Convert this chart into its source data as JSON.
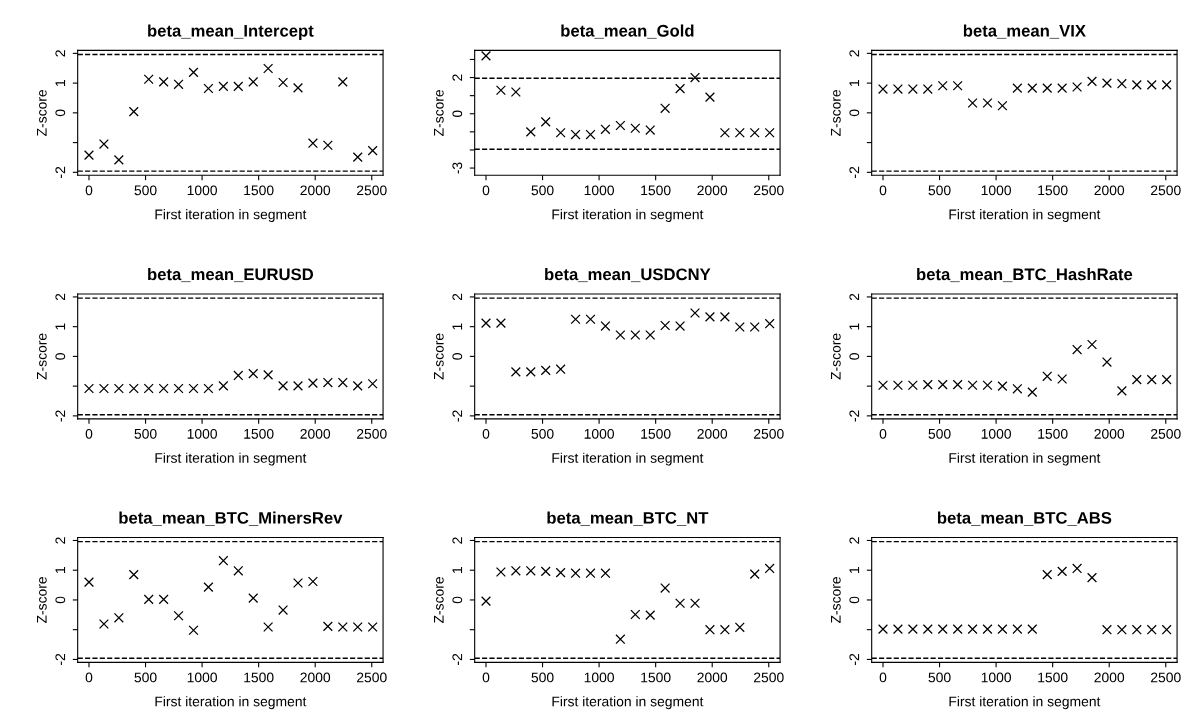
{
  "chart_data": [
    {
      "type": "scatter",
      "title": "beta_mean_Intercept",
      "xlabel": "First iteration in segment",
      "ylabel": "Z-score",
      "marker": "cross",
      "color": "#000000",
      "grid": false,
      "xlim": [
        -100,
        2600
      ],
      "xticks": [
        0,
        500,
        1000,
        1500,
        2000,
        2500
      ],
      "ylim": [
        -2.1,
        2.1
      ],
      "yticks": [
        -2,
        {
          "value": -1,
          "label": null
        },
        0,
        1,
        2
      ],
      "ref_lines": [
        {
          "axis": "y",
          "value": 1.96,
          "line_style": "dashed"
        },
        {
          "axis": "y",
          "value": -1.96,
          "line_style": "dashed"
        }
      ],
      "x": [
        0,
        132,
        264,
        396,
        528,
        660,
        792,
        924,
        1056,
        1188,
        1320,
        1452,
        1584,
        1716,
        1848,
        1980,
        2112,
        2244,
        2376,
        2508
      ],
      "values": [
        -1.42,
        -1.05,
        -1.58,
        0.04,
        1.13,
        1.04,
        0.96,
        1.36,
        0.82,
        0.89,
        0.89,
        1.04,
        1.49,
        1.02,
        0.84,
        -1.02,
        -1.09,
        1.04,
        -1.49,
        -1.27
      ]
    },
    {
      "type": "scatter",
      "title": "beta_mean_Gold",
      "xlabel": "First iteration in segment",
      "ylabel": "Z-score",
      "marker": "cross",
      "color": "#000000",
      "grid": false,
      "xlim": [
        -100,
        2600
      ],
      "xticks": [
        0,
        500,
        1000,
        1500,
        2000,
        2500
      ],
      "ylim": [
        -3.4,
        3.5
      ],
      "yticks": [
        -3,
        {
          "value": -2,
          "label": null
        },
        {
          "value": -1,
          "label": null
        },
        0,
        {
          "value": 1,
          "label": null
        },
        2,
        {
          "value": 3,
          "label": null
        }
      ],
      "ref_lines": [
        {
          "axis": "y",
          "value": 1.96,
          "line_style": "dashed"
        },
        {
          "axis": "y",
          "value": -1.96,
          "line_style": "dashed"
        }
      ],
      "x": [
        0,
        132,
        264,
        396,
        528,
        660,
        792,
        924,
        1056,
        1188,
        1320,
        1452,
        1584,
        1716,
        1848,
        1980,
        2112,
        2244,
        2376,
        2508
      ],
      "values": [
        3.2,
        1.3,
        1.2,
        -1.0,
        -0.45,
        -1.05,
        -1.15,
        -1.15,
        -0.86,
        -0.65,
        -0.8,
        -0.9,
        0.3,
        1.39,
        2.0,
        0.92,
        -1.05,
        -1.05,
        -1.05,
        -1.05
      ]
    },
    {
      "type": "scatter",
      "title": "beta_mean_VIX",
      "xlabel": "First iteration in segment",
      "ylabel": "Z-score",
      "marker": "cross",
      "color": "#000000",
      "grid": false,
      "xlim": [
        -100,
        2600
      ],
      "xticks": [
        0,
        500,
        1000,
        1500,
        2000,
        2500
      ],
      "ylim": [
        -2.1,
        2.1
      ],
      "yticks": [
        -2,
        {
          "value": -1,
          "label": null
        },
        0,
        1,
        2
      ],
      "ref_lines": [
        {
          "axis": "y",
          "value": 1.96,
          "line_style": "dashed"
        },
        {
          "axis": "y",
          "value": -1.96,
          "line_style": "dashed"
        }
      ],
      "x": [
        0,
        132,
        264,
        396,
        528,
        660,
        792,
        924,
        1056,
        1188,
        1320,
        1452,
        1584,
        1716,
        1848,
        1980,
        2112,
        2244,
        2376,
        2508
      ],
      "values": [
        0.8,
        0.8,
        0.8,
        0.8,
        0.91,
        0.91,
        0.33,
        0.33,
        0.24,
        0.83,
        0.83,
        0.83,
        0.83,
        0.87,
        1.06,
        1.0,
        0.98,
        0.94,
        0.94,
        0.94
      ]
    },
    {
      "type": "scatter",
      "title": "beta_mean_EURUSD",
      "xlabel": "First iteration in segment",
      "ylabel": "Z-score",
      "marker": "cross",
      "color": "#000000",
      "grid": false,
      "xlim": [
        -100,
        2600
      ],
      "xticks": [
        0,
        500,
        1000,
        1500,
        2000,
        2500
      ],
      "ylim": [
        -2.1,
        2.1
      ],
      "yticks": [
        -2,
        {
          "value": -1,
          "label": null
        },
        0,
        1,
        2
      ],
      "ref_lines": [
        {
          "axis": "y",
          "value": 1.96,
          "line_style": "dashed"
        },
        {
          "axis": "y",
          "value": -1.96,
          "line_style": "dashed"
        }
      ],
      "x": [
        0,
        132,
        264,
        396,
        528,
        660,
        792,
        924,
        1056,
        1188,
        1320,
        1452,
        1584,
        1716,
        1848,
        1980,
        2112,
        2244,
        2376,
        2508
      ],
      "values": [
        -1.08,
        -1.08,
        -1.08,
        -1.08,
        -1.08,
        -1.08,
        -1.08,
        -1.08,
        -1.08,
        -0.99,
        -0.64,
        -0.58,
        -0.62,
        -0.99,
        -0.99,
        -0.9,
        -0.88,
        -0.88,
        -0.99,
        -0.92
      ]
    },
    {
      "type": "scatter",
      "title": "beta_mean_USDCNY",
      "xlabel": "First iteration in segment",
      "ylabel": "Z-score",
      "marker": "cross",
      "color": "#000000",
      "grid": false,
      "xlim": [
        -100,
        2600
      ],
      "xticks": [
        0,
        500,
        1000,
        1500,
        2000,
        2500
      ],
      "ylim": [
        -2.1,
        2.1
      ],
      "yticks": [
        -2,
        {
          "value": -1,
          "label": null
        },
        0,
        1,
        2
      ],
      "ref_lines": [
        {
          "axis": "y",
          "value": 1.96,
          "line_style": "dashed"
        },
        {
          "axis": "y",
          "value": -1.96,
          "line_style": "dashed"
        }
      ],
      "x": [
        0,
        132,
        264,
        396,
        528,
        660,
        792,
        924,
        1056,
        1188,
        1320,
        1452,
        1584,
        1716,
        1848,
        1980,
        2112,
        2244,
        2376,
        2508
      ],
      "values": [
        1.12,
        1.12,
        -0.52,
        -0.52,
        -0.47,
        -0.43,
        1.25,
        1.25,
        1.02,
        0.72,
        0.72,
        0.72,
        1.04,
        1.02,
        1.46,
        1.33,
        1.33,
        0.99,
        0.99,
        1.1
      ]
    },
    {
      "type": "scatter",
      "title": "beta_mean_BTC_HashRate",
      "xlabel": "First iteration in segment",
      "ylabel": "Z-score",
      "marker": "cross",
      "color": "#000000",
      "grid": false,
      "xlim": [
        -100,
        2600
      ],
      "xticks": [
        0,
        500,
        1000,
        1500,
        2000,
        2500
      ],
      "ylim": [
        -2.1,
        2.1
      ],
      "yticks": [
        -2,
        {
          "value": -1,
          "label": null
        },
        0,
        1,
        2
      ],
      "ref_lines": [
        {
          "axis": "y",
          "value": 1.96,
          "line_style": "dashed"
        },
        {
          "axis": "y",
          "value": -1.96,
          "line_style": "dashed"
        }
      ],
      "x": [
        0,
        132,
        264,
        396,
        528,
        660,
        792,
        924,
        1056,
        1188,
        1320,
        1452,
        1584,
        1716,
        1848,
        1980,
        2112,
        2244,
        2376,
        2508
      ],
      "values": [
        -0.97,
        -0.97,
        -0.97,
        -0.95,
        -0.95,
        -0.95,
        -0.97,
        -0.97,
        -1.0,
        -1.09,
        -1.2,
        -0.67,
        -0.76,
        0.23,
        0.4,
        -0.19,
        -1.16,
        -0.78,
        -0.78,
        -0.78
      ]
    },
    {
      "type": "scatter",
      "title": "beta_mean_BTC_MinersRev",
      "xlabel": "First iteration in segment",
      "ylabel": "Z-score",
      "marker": "cross",
      "color": "#000000",
      "grid": false,
      "xlim": [
        -100,
        2600
      ],
      "xticks": [
        0,
        500,
        1000,
        1500,
        2000,
        2500
      ],
      "ylim": [
        -2.1,
        2.1
      ],
      "yticks": [
        -2,
        {
          "value": -1,
          "label": null
        },
        0,
        1,
        2
      ],
      "ref_lines": [
        {
          "axis": "y",
          "value": 1.96,
          "line_style": "dashed"
        },
        {
          "axis": "y",
          "value": -1.96,
          "line_style": "dashed"
        }
      ],
      "x": [
        0,
        132,
        264,
        396,
        528,
        660,
        792,
        924,
        1056,
        1188,
        1320,
        1452,
        1584,
        1716,
        1848,
        1980,
        2112,
        2244,
        2376,
        2508
      ],
      "values": [
        0.6,
        -0.81,
        -0.6,
        0.85,
        0.02,
        0.02,
        -0.53,
        -1.02,
        0.43,
        1.32,
        0.98,
        0.06,
        -0.91,
        -0.34,
        0.57,
        0.62,
        -0.89,
        -0.91,
        -0.91,
        -0.91
      ]
    },
    {
      "type": "scatter",
      "title": "beta_mean_BTC_NT",
      "xlabel": "First iteration in segment",
      "ylabel": "Z-score",
      "marker": "cross",
      "color": "#000000",
      "grid": false,
      "xlim": [
        -100,
        2600
      ],
      "xticks": [
        0,
        500,
        1000,
        1500,
        2000,
        2500
      ],
      "ylim": [
        -2.1,
        2.1
      ],
      "yticks": [
        -2,
        {
          "value": -1,
          "label": null
        },
        0,
        1,
        2
      ],
      "ref_lines": [
        {
          "axis": "y",
          "value": 1.96,
          "line_style": "dashed"
        },
        {
          "axis": "y",
          "value": -1.96,
          "line_style": "dashed"
        }
      ],
      "x": [
        0,
        132,
        264,
        396,
        528,
        660,
        792,
        924,
        1056,
        1188,
        1320,
        1452,
        1584,
        1716,
        1848,
        1980,
        2112,
        2244,
        2376,
        2508
      ],
      "values": [
        -0.04,
        0.94,
        0.98,
        0.98,
        0.96,
        0.92,
        0.9,
        0.9,
        0.9,
        -1.32,
        -0.49,
        -0.51,
        0.4,
        -0.11,
        -0.11,
        -1.0,
        -1.0,
        -0.92,
        0.87,
        1.06
      ]
    },
    {
      "type": "scatter",
      "title": "beta_mean_BTC_ABS",
      "xlabel": "First iteration in segment",
      "ylabel": "Z-score",
      "marker": "cross",
      "color": "#000000",
      "grid": false,
      "xlim": [
        -100,
        2600
      ],
      "xticks": [
        0,
        500,
        1000,
        1500,
        2000,
        2500
      ],
      "ylim": [
        -2.1,
        2.1
      ],
      "yticks": [
        -2,
        {
          "value": -1,
          "label": null
        },
        0,
        1,
        2
      ],
      "ref_lines": [
        {
          "axis": "y",
          "value": 1.96,
          "line_style": "dashed"
        },
        {
          "axis": "y",
          "value": -1.96,
          "line_style": "dashed"
        }
      ],
      "x": [
        0,
        132,
        264,
        396,
        528,
        660,
        792,
        924,
        1056,
        1188,
        1320,
        1452,
        1584,
        1716,
        1848,
        1980,
        2112,
        2244,
        2376,
        2508
      ],
      "values": [
        -0.98,
        -0.98,
        -0.98,
        -0.98,
        -0.98,
        -0.98,
        -0.98,
        -0.98,
        -0.98,
        -0.98,
        -0.98,
        0.85,
        0.96,
        1.06,
        0.75,
        -1.0,
        -1.0,
        -1.0,
        -1.0,
        -1.0
      ]
    }
  ]
}
